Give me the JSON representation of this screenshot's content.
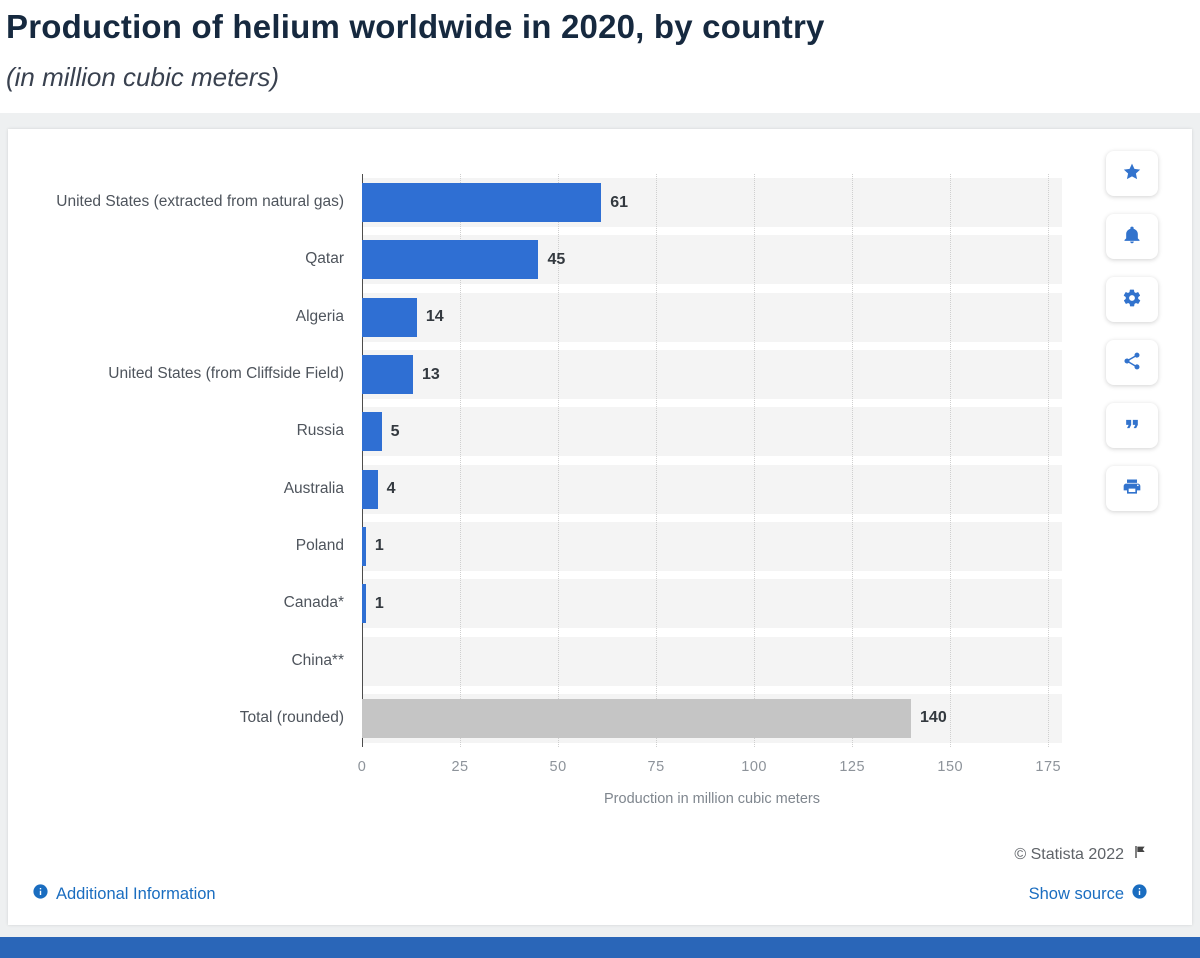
{
  "header": {
    "title": "Production of helium worldwide in 2020, by country",
    "subtitle": "(in million cubic meters)"
  },
  "chart_data": {
    "type": "bar",
    "orientation": "horizontal",
    "title": "Production of helium worldwide in 2020, by country",
    "categories": [
      "United States (extracted from natural gas)",
      "Qatar",
      "Algeria",
      "United States (from Cliffside Field)",
      "Russia",
      "Australia",
      "Poland",
      "Canada*",
      "China**",
      "Total (rounded)"
    ],
    "values": [
      61,
      45,
      14,
      13,
      5,
      4,
      1,
      1,
      null,
      140
    ],
    "bar_colors": [
      "#2f6fd3",
      "#2f6fd3",
      "#2f6fd3",
      "#2f6fd3",
      "#2f6fd3",
      "#2f6fd3",
      "#2f6fd3",
      "#2f6fd3",
      "#2f6fd3",
      "#c5c5c5"
    ],
    "xlabel": "Production in million cubic meters",
    "ylabel": "",
    "x_ticks": [
      0,
      25,
      50,
      75,
      100,
      125,
      150,
      175
    ],
    "xlim": [
      0,
      175
    ],
    "grid": "dotted-vertical",
    "row_stripe_color": "#f4f4f4"
  },
  "toolbar": {
    "icons": [
      "star",
      "bell",
      "gear",
      "share",
      "quote",
      "print"
    ]
  },
  "footer": {
    "copyright": "© Statista 2022",
    "additional_info_label": "Additional Information",
    "show_source_label": "Show source"
  },
  "colors": {
    "accent_blue": "#2f6fd3",
    "total_gray": "#c5c5c5",
    "link_blue": "#1a6dc0",
    "bottom_bar_blue": "#2a66b8"
  }
}
